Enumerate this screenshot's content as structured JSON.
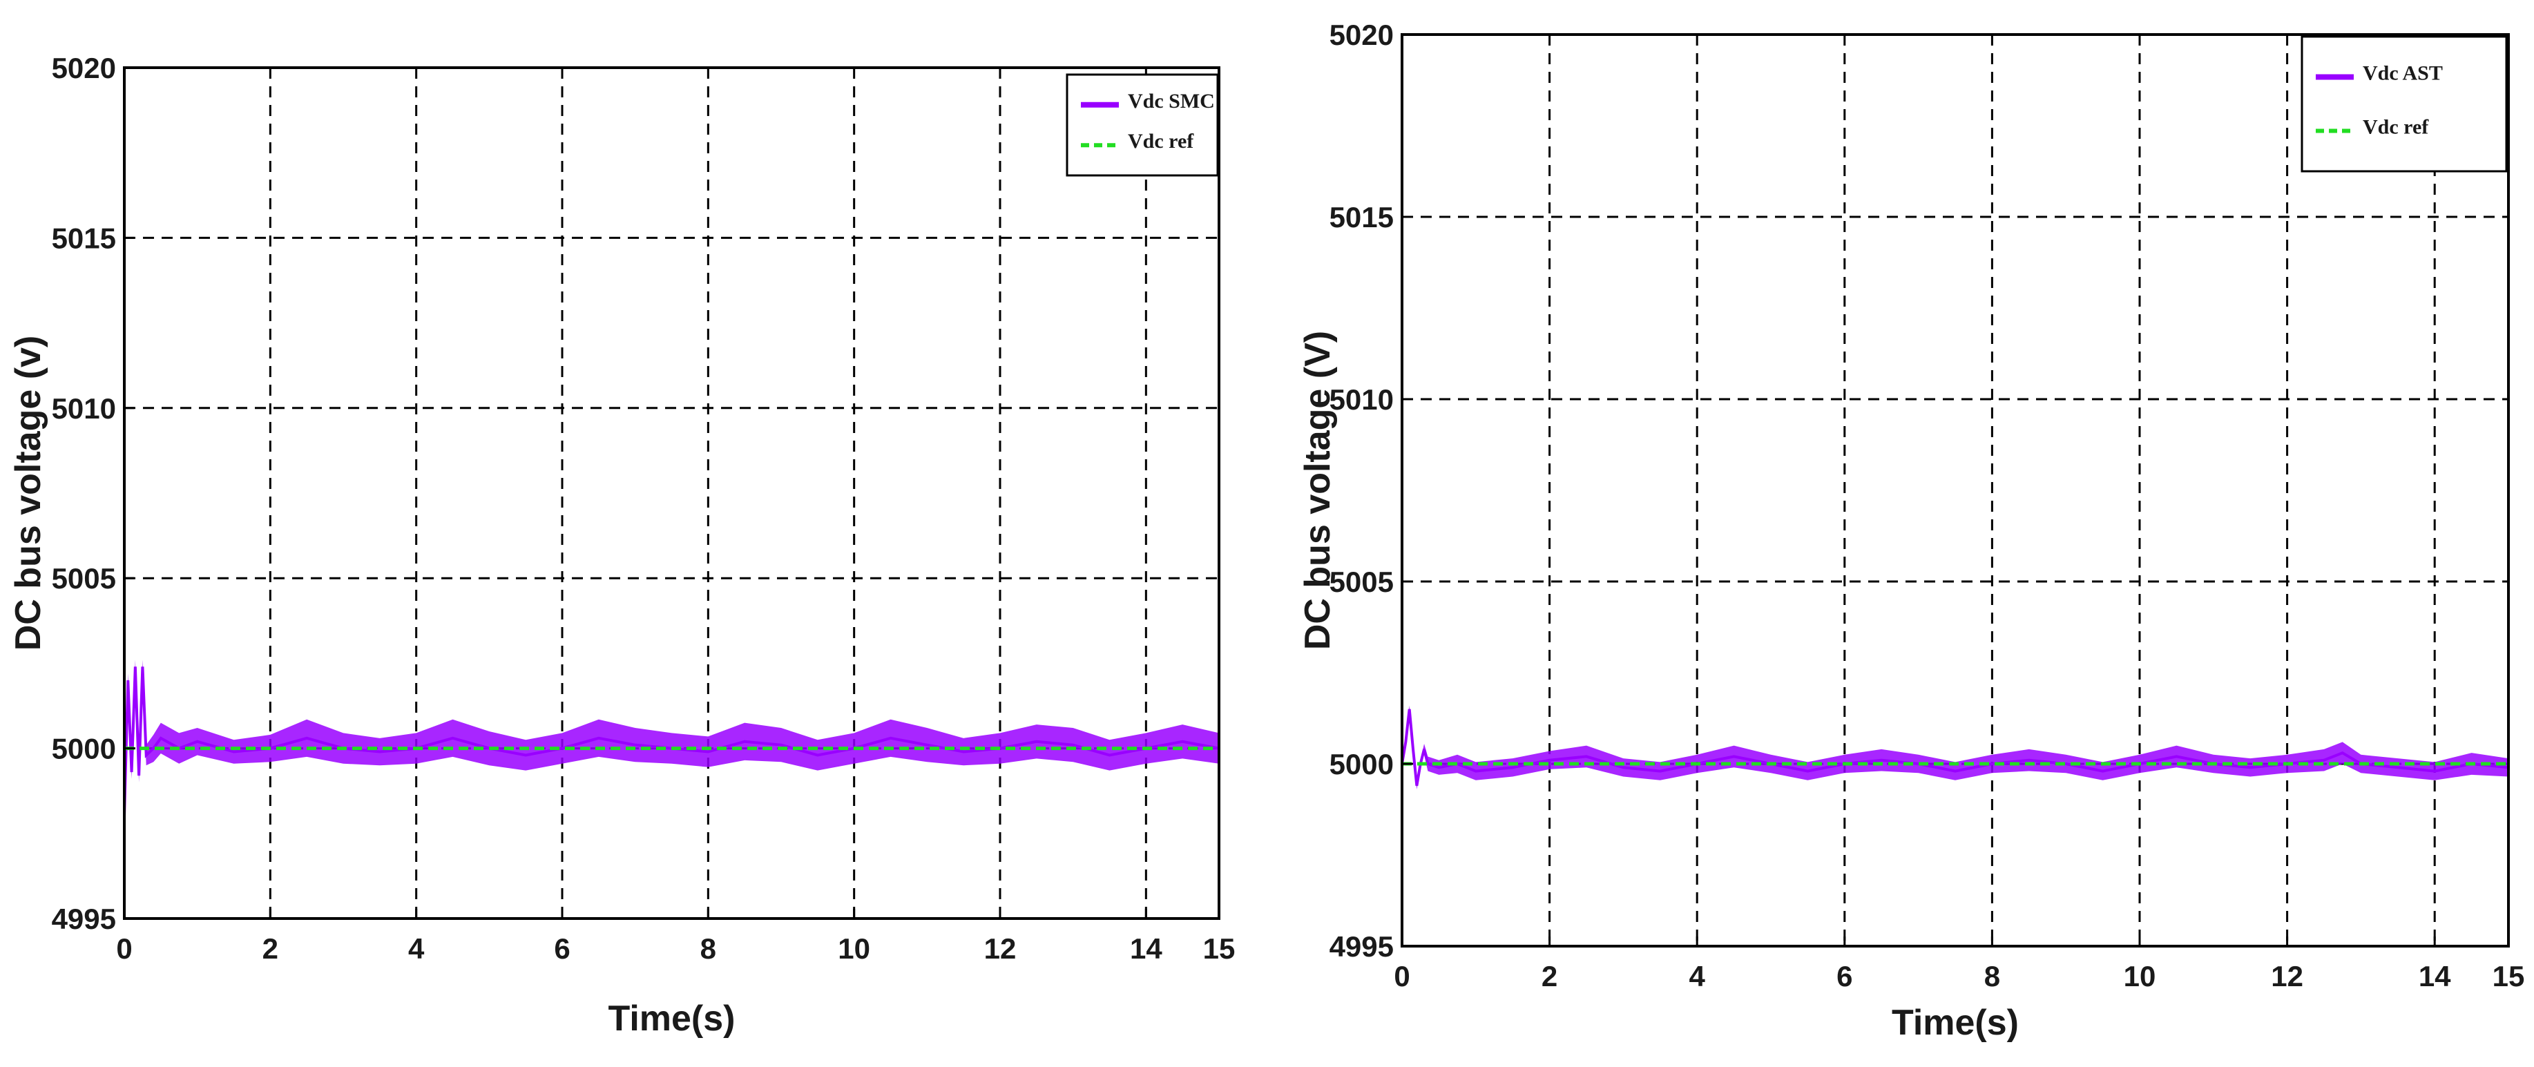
{
  "chart_data": [
    {
      "type": "line",
      "title": "",
      "xlabel": "Time(s)",
      "ylabel": "DC bus voltage (v)",
      "xlim": [
        0,
        15
      ],
      "ylim": [
        4995,
        5020
      ],
      "xticks": [
        0,
        2,
        4,
        6,
        8,
        10,
        12,
        14,
        15
      ],
      "xtick_labels": [
        "0",
        "2",
        "4",
        "6",
        "8",
        "10",
        "12",
        "14",
        "15"
      ],
      "yticks": [
        4995,
        5000,
        5005,
        5010,
        5015,
        5020
      ],
      "ytick_labels": [
        "4995",
        "5000",
        "5005",
        "5010",
        "5015",
        "5020"
      ],
      "grid": true,
      "legend_position": "top-right",
      "colors": {
        "measured": "#9900ff",
        "reference": "#22dd22"
      },
      "series": [
        {
          "name": "Vdc SMC",
          "style": "solid",
          "x": [
            0,
            0.05,
            0.1,
            0.15,
            0.2,
            0.25,
            0.3,
            0.4,
            0.5,
            0.75,
            1.0,
            1.5,
            2.0,
            2.5,
            3.0,
            3.5,
            4.0,
            4.5,
            5.0,
            5.5,
            6.0,
            6.5,
            7.0,
            7.5,
            8.0,
            8.5,
            9.0,
            9.5,
            10.0,
            10.5,
            11.0,
            11.5,
            12.0,
            12.5,
            13.0,
            13.5,
            14.0,
            14.5,
            15.0
          ],
          "y": [
            4998.0,
            5002.0,
            4999.3,
            5002.4,
            4999.2,
            5002.4,
            4999.8,
            5000.0,
            5000.3,
            5000.0,
            5000.2,
            4999.9,
            5000.0,
            5000.3,
            5000.0,
            4999.9,
            5000.0,
            5000.3,
            5000.0,
            4999.8,
            5000.0,
            5000.3,
            5000.1,
            5000.0,
            4999.9,
            5000.2,
            5000.1,
            4999.8,
            5000.0,
            5000.3,
            5000.1,
            4999.9,
            5000.0,
            5000.2,
            5000.1,
            4999.8,
            5000.0,
            5000.2,
            5000.0
          ],
          "band": [
            0.2,
            0.2,
            0.2,
            0.2,
            0.2,
            0.2,
            0.3,
            0.4,
            0.45,
            0.45,
            0.4,
            0.35,
            0.4,
            0.55,
            0.45,
            0.4,
            0.45,
            0.55,
            0.5,
            0.45,
            0.45,
            0.55,
            0.5,
            0.45,
            0.45,
            0.55,
            0.5,
            0.45,
            0.45,
            0.55,
            0.5,
            0.4,
            0.45,
            0.5,
            0.5,
            0.45,
            0.45,
            0.5,
            0.45
          ]
        },
        {
          "name": "Vdc ref",
          "style": "dashed",
          "x": [
            0,
            15
          ],
          "y": [
            5000,
            5000
          ],
          "band": [
            0,
            0
          ]
        }
      ]
    },
    {
      "type": "line",
      "title": "",
      "xlabel": "Time(s)",
      "ylabel": "DC bus voltage (V)",
      "xlim": [
        0,
        15
      ],
      "ylim": [
        4995,
        5020
      ],
      "xticks": [
        0,
        2,
        4,
        6,
        8,
        10,
        12,
        14,
        15
      ],
      "xtick_labels": [
        "0",
        "2",
        "4",
        "6",
        "8",
        "10",
        "12",
        "14",
        "15"
      ],
      "yticks": [
        4995,
        5000,
        5005,
        5010,
        5015,
        5020
      ],
      "ytick_labels": [
        "4995",
        "5000",
        "5005",
        "5010",
        "5015",
        "5020"
      ],
      "grid": true,
      "legend_position": "top-right",
      "colors": {
        "measured": "#9900ff",
        "reference": "#22dd22"
      },
      "series": [
        {
          "name": "Vdc AST",
          "style": "solid",
          "x": [
            0,
            0.05,
            0.1,
            0.15,
            0.2,
            0.25,
            0.3,
            0.35,
            0.5,
            0.75,
            1.0,
            1.5,
            2.0,
            2.5,
            3.0,
            3.5,
            4.0,
            4.5,
            5.0,
            5.5,
            6.0,
            6.5,
            7.0,
            7.5,
            8.0,
            8.5,
            9.0,
            9.5,
            10.0,
            10.5,
            11.0,
            11.5,
            12.0,
            12.5,
            12.75,
            13.0,
            13.5,
            14.0,
            14.5,
            15.0
          ],
          "y": [
            5000.0,
            5000.6,
            5001.5,
            5000.4,
            4999.4,
            5000.0,
            5000.4,
            5000.0,
            4999.9,
            5000.0,
            4999.8,
            4999.9,
            5000.1,
            5000.2,
            4999.9,
            4999.8,
            5000.0,
            5000.2,
            5000.0,
            4999.8,
            5000.0,
            5000.1,
            5000.0,
            4999.8,
            5000.0,
            5000.1,
            5000.0,
            4999.8,
            5000.0,
            5000.2,
            5000.0,
            4999.9,
            5000.0,
            5000.1,
            5000.3,
            5000.0,
            4999.9,
            4999.8,
            5000.0,
            4999.9
          ],
          "band": [
            0.05,
            0.1,
            0.1,
            0.1,
            0.1,
            0.1,
            0.15,
            0.2,
            0.2,
            0.25,
            0.25,
            0.25,
            0.25,
            0.3,
            0.25,
            0.25,
            0.25,
            0.3,
            0.25,
            0.25,
            0.25,
            0.3,
            0.25,
            0.25,
            0.25,
            0.3,
            0.25,
            0.25,
            0.25,
            0.3,
            0.25,
            0.25,
            0.25,
            0.3,
            0.3,
            0.25,
            0.25,
            0.25,
            0.3,
            0.25
          ]
        },
        {
          "name": "Vdc ref",
          "style": "dashed",
          "x": [
            0,
            15
          ],
          "y": [
            5000,
            5000
          ],
          "band": [
            0,
            0
          ]
        }
      ]
    }
  ]
}
